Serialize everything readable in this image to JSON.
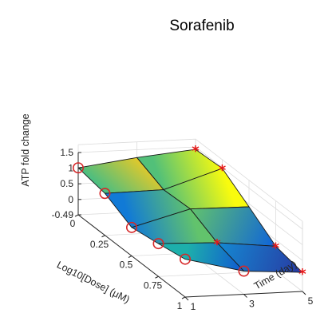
{
  "chart_data": {
    "type": "surface3d",
    "title": "Sorafenib",
    "xlabel": "Log10[Dose] (μM)",
    "ylabel": "Time (day)",
    "zlabel": "ATP fold change",
    "x_ticks": [
      "0",
      "0.25",
      "0.5",
      "0.75",
      "1"
    ],
    "y_ticks": [
      "1",
      "3",
      "5"
    ],
    "z_ticks": [
      "-0.49",
      "0",
      "0.5",
      "1",
      "1.5"
    ],
    "grid": true,
    "colormap": "parula-like",
    "surface": [
      {
        "time": 1,
        "dose": [
          0,
          0.25,
          0.5,
          0.75,
          1
        ],
        "atp": [
          1.01,
          0.85,
          0.42,
          0.56,
          0.72
        ]
      },
      {
        "time": 3,
        "dose": [
          0,
          0.25,
          0.5,
          0.75,
          1
        ],
        "atp": [
          1.25,
          0.88,
          0.92,
          0.5,
          0.25
        ]
      },
      {
        "time": 5,
        "dose": [
          0,
          0.25,
          0.5,
          0.75,
          1
        ],
        "atp": [
          1.42,
          1.47,
          0.9,
          0.3,
          0.12
        ]
      }
    ],
    "markers": [
      {
        "type": "circle",
        "color": "#d62728",
        "time": 1,
        "dose": 0,
        "atp": 1.01
      },
      {
        "type": "circle",
        "color": "#d62728",
        "time": 1,
        "dose": 0.25,
        "atp": 0.85
      },
      {
        "type": "circle",
        "color": "#d62728",
        "time": 1,
        "dose": 0.5,
        "atp": 0.42
      },
      {
        "type": "circle",
        "color": "#d62728",
        "time": 1,
        "dose": 0.75,
        "atp": 0.56
      },
      {
        "type": "circle",
        "color": "#d62728",
        "time": 1,
        "dose": 1,
        "atp": 0.72
      },
      {
        "type": "circle",
        "color": "#d62728",
        "time": 3,
        "dose": 1,
        "atp": 0.25
      },
      {
        "type": "star",
        "color": "#e81818",
        "time": 3,
        "dose": 0.75,
        "atp": 0.5
      },
      {
        "type": "star",
        "color": "#e81818",
        "time": 5,
        "dose": 0,
        "atp": 1.42
      },
      {
        "type": "star",
        "color": "#e81818",
        "time": 5,
        "dose": 0.25,
        "atp": 1.47
      },
      {
        "type": "star",
        "color": "#e81818",
        "time": 5,
        "dose": 0.75,
        "atp": 0.3
      },
      {
        "type": "star",
        "color": "#e81818",
        "time": 5,
        "dose": 1,
        "atp": 0.12
      }
    ]
  }
}
